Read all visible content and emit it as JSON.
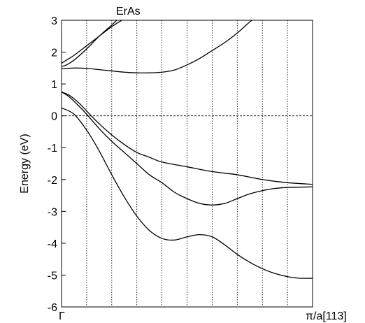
{
  "chart_data": {
    "type": "line",
    "title": "ErAs",
    "ylabel": "Energy (eV)",
    "xlabel": "",
    "x_tick_labels": [
      "Γ",
      "π/a[113]"
    ],
    "xlim": [
      0,
      1
    ],
    "ylim": [
      -6,
      3
    ],
    "y_ticks": [
      -6,
      -5,
      -4,
      -3,
      -2,
      -1,
      0,
      1,
      2,
      3
    ],
    "fermi_level": 0,
    "grid": "vertical dotted",
    "grid_x": [
      0.1,
      0.2,
      0.3,
      0.4,
      0.5,
      0.6,
      0.7,
      0.8,
      0.9
    ],
    "series": [
      {
        "x": [
          0,
          0.02,
          0.05,
          0.1,
          0.15,
          0.2,
          0.24
        ],
        "y": [
          1.65,
          1.75,
          1.9,
          2.2,
          2.5,
          2.8,
          3.0
        ]
      },
      {
        "x": [
          0,
          0.02,
          0.05,
          0.1,
          0.15,
          0.2,
          0.22
        ],
        "y": [
          1.55,
          1.6,
          1.75,
          2.1,
          2.5,
          2.85,
          3.0
        ]
      },
      {
        "x": [
          0,
          0.05,
          0.1,
          0.15,
          0.2,
          0.25,
          0.3,
          0.35,
          0.4,
          0.45,
          0.5,
          0.55,
          0.6,
          0.65,
          0.7,
          0.75,
          0.76
        ],
        "y": [
          1.48,
          1.5,
          1.49,
          1.45,
          1.41,
          1.37,
          1.35,
          1.35,
          1.37,
          1.44,
          1.6,
          1.8,
          2.05,
          2.3,
          2.6,
          2.95,
          3.0
        ]
      },
      {
        "x": [
          0,
          0.03,
          0.07,
          0.1,
          0.15,
          0.2,
          0.25,
          0.3,
          0.35,
          0.4,
          0.5,
          0.6,
          0.7,
          0.8,
          0.9,
          1.0
        ],
        "y": [
          0.75,
          0.65,
          0.4,
          0.15,
          -0.25,
          -0.6,
          -0.9,
          -1.15,
          -1.3,
          -1.45,
          -1.6,
          -1.75,
          -1.85,
          -2.0,
          -2.1,
          -2.15
        ]
      },
      {
        "x": [
          0,
          0.03,
          0.07,
          0.1,
          0.15,
          0.2,
          0.25,
          0.3,
          0.35,
          0.4,
          0.45,
          0.5,
          0.55,
          0.6,
          0.65,
          0.7,
          0.75,
          0.8,
          0.85,
          0.9,
          0.95,
          1.0
        ],
        "y": [
          0.75,
          0.6,
          0.3,
          0.05,
          -0.4,
          -0.8,
          -1.15,
          -1.5,
          -1.85,
          -2.1,
          -2.4,
          -2.6,
          -2.75,
          -2.8,
          -2.75,
          -2.6,
          -2.45,
          -2.35,
          -2.28,
          -2.25,
          -2.24,
          -2.23
        ]
      },
      {
        "x": [
          0,
          0.05,
          0.1,
          0.15,
          0.2,
          0.25,
          0.3,
          0.35,
          0.4,
          0.45,
          0.5,
          0.55,
          0.6,
          0.65,
          0.7,
          0.75,
          0.8,
          0.85,
          0.9,
          0.95,
          1.0
        ],
        "y": [
          0.25,
          0.05,
          -0.45,
          -1.1,
          -1.85,
          -2.55,
          -3.15,
          -3.6,
          -3.85,
          -3.9,
          -3.8,
          -3.73,
          -3.8,
          -4.05,
          -4.35,
          -4.6,
          -4.8,
          -4.95,
          -5.05,
          -5.1,
          -5.1
        ]
      }
    ]
  }
}
